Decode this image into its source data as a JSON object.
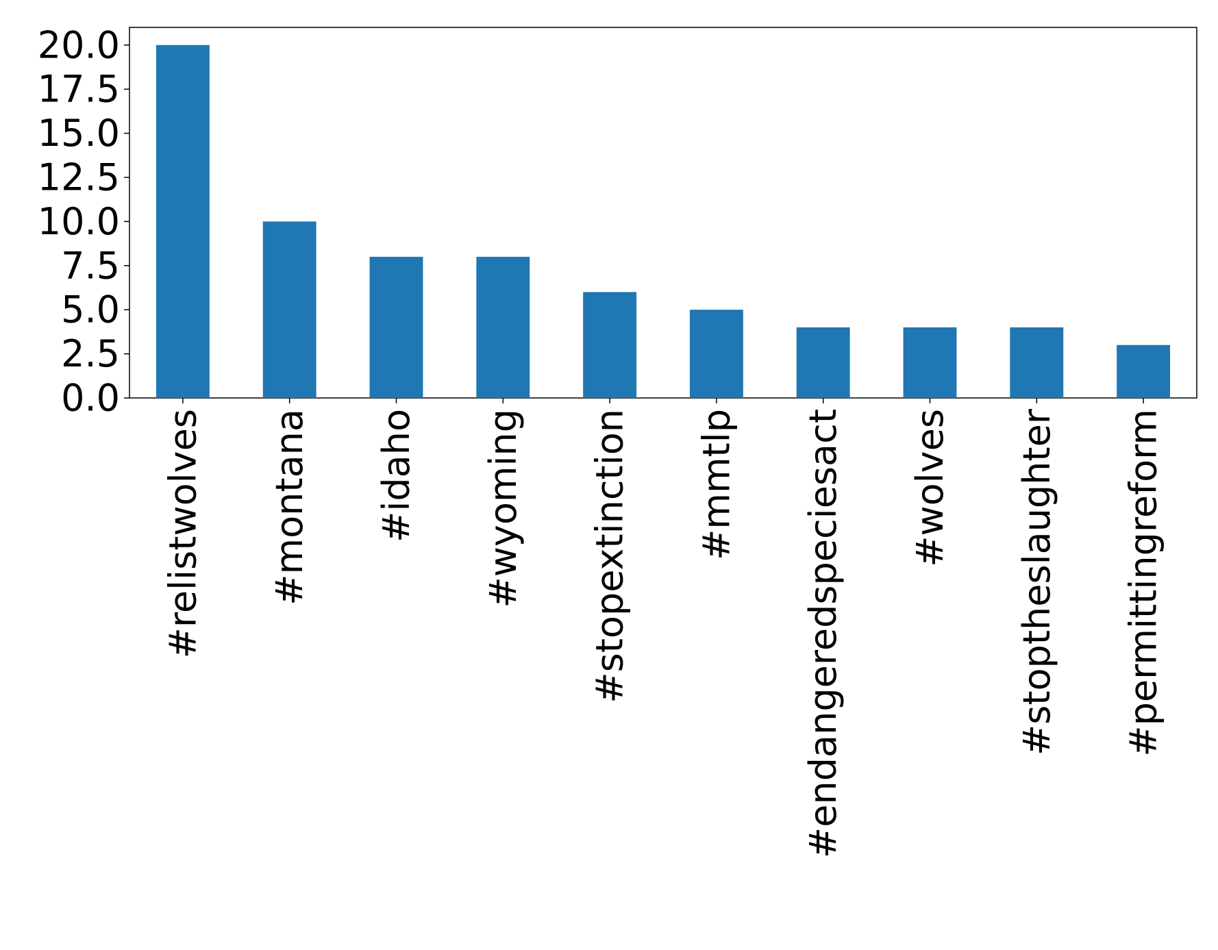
{
  "chart_data": {
    "type": "bar",
    "categories": [
      "#relistwolves",
      "#montana",
      "#idaho",
      "#wyoming",
      "#stopextinction",
      "#mmtlp",
      "#endangeredspeciesact",
      "#wolves",
      "#stoptheslaughter",
      "#permittingreform"
    ],
    "values": [
      20,
      10,
      8,
      8,
      6,
      5,
      4,
      4,
      4,
      3
    ],
    "color": "#1f77b4",
    "ylim": [
      0,
      21
    ],
    "yticks": [
      {
        "value": 0,
        "label": "0.0"
      },
      2.5,
      {
        "value": 5,
        "label": "5.0"
      },
      7.5,
      {
        "value": 10,
        "label": "10.0"
      },
      12.5,
      {
        "value": 15,
        "label": "15.0"
      },
      17.5,
      {
        "value": 20,
        "label": "20.0"
      }
    ],
    "grid": false
  }
}
